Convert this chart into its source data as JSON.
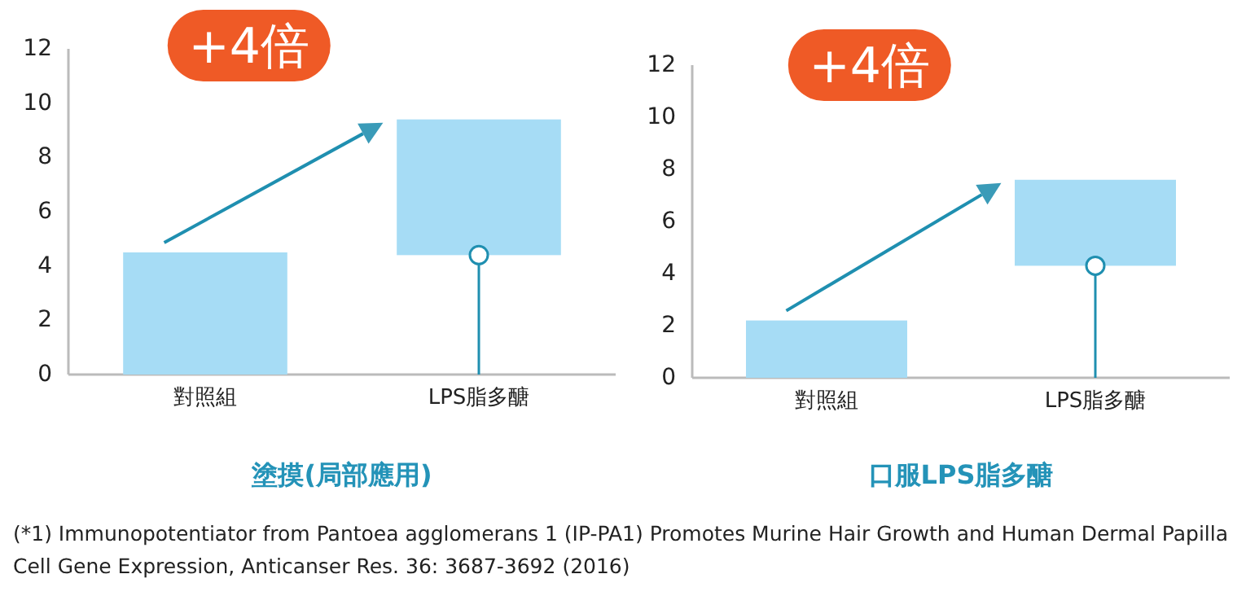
{
  "chart_data": [
    {
      "type": "bar",
      "categories": [
        "對照組",
        "LPS脂多醣"
      ],
      "xlabel": "塗摸(局部應用)",
      "ylim": [
        0,
        12
      ],
      "yticks": [
        0,
        2,
        4,
        6,
        8,
        10,
        12
      ],
      "annotations": [
        "+4倍",
        "(*1) Immunopotentiator from Pantoea agglomerans 1 (IP-PA1) Promotes Murine Hair Growth and Human Dermal Papilla Cell Gene Expression, Anticanser Res. 36: 3687-3692 (2016)"
      ],
      "series": [
        {
          "type": "bar",
          "color": "#a6dcf5",
          "values": [
            4.5,
            5.0
          ],
          "base": [
            0,
            4.4
          ]
        },
        {
          "type": "lollipop",
          "color": "#1f8fb0",
          "marker": "circle",
          "values": [
            null,
            4.4
          ]
        }
      ]
    },
    {
      "type": "bar",
      "categories": [
        "對照組",
        "LPS脂多醣"
      ],
      "xlabel": "口服LPS脂多醣",
      "ylim": [
        0,
        12
      ],
      "yticks": [
        0,
        2,
        4,
        6,
        8,
        10,
        12
      ],
      "annotations": [
        "+4倍"
      ],
      "series": [
        {
          "type": "bar",
          "color": "#a6dcf5",
          "values": [
            2.2,
            3.3
          ],
          "base": [
            0,
            4.3
          ]
        },
        {
          "type": "lollipop",
          "color": "#1f8fb0",
          "marker": "circle",
          "values": [
            null,
            4.3
          ]
        }
      ]
    }
  ]
}
